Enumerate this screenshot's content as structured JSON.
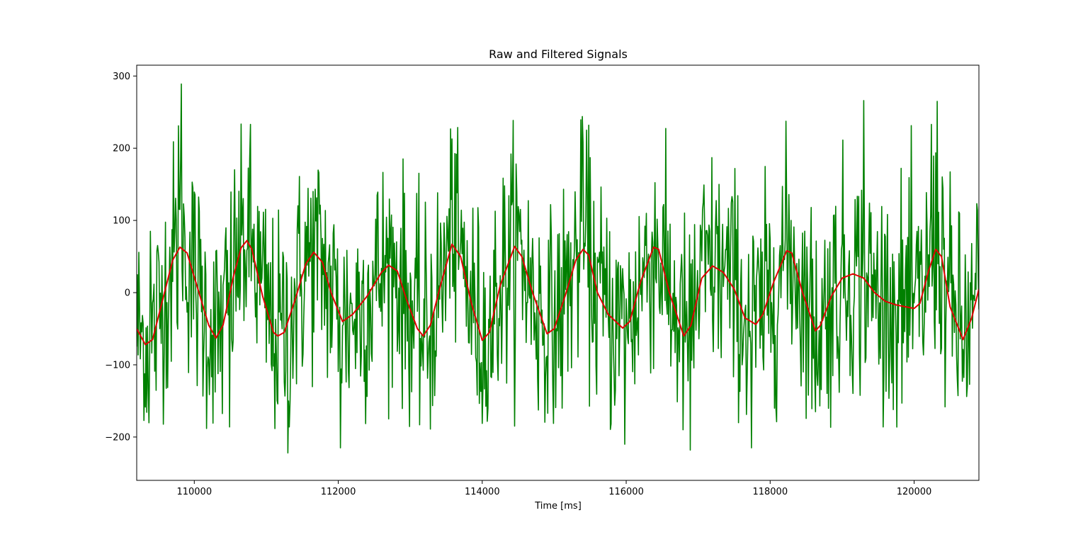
{
  "chart_data": {
    "type": "line",
    "title": "Raw and Filtered Signals",
    "xlabel": "Time [ms]",
    "ylabel": "",
    "xlim": [
      109200,
      120900
    ],
    "ylim": [
      -260,
      315
    ],
    "x_ticks": [
      110000,
      112000,
      114000,
      116000,
      118000,
      120000
    ],
    "x_tick_labels": [
      "110000",
      "112000",
      "114000",
      "116000",
      "118000",
      "120000"
    ],
    "y_ticks": [
      -200,
      -100,
      0,
      100,
      200,
      300
    ],
    "y_tick_labels": [
      "−200",
      "−100",
      "0",
      "100",
      "200",
      "300"
    ],
    "grid": false,
    "legend": "none",
    "series": [
      {
        "color": "#008000",
        "x_start": 109200,
        "x_step": 10,
        "amplitude": 80,
        "peaks": [
          {
            "x": 109820,
            "y": 289
          },
          {
            "x": 109780,
            "y": 231
          },
          {
            "x": 109390,
            "y": 85
          },
          {
            "x": 111300,
            "y": -222
          },
          {
            "x": 110490,
            "y": -186
          },
          {
            "x": 112030,
            "y": -215
          },
          {
            "x": 113580,
            "y": 213
          },
          {
            "x": 115390,
            "y": 244
          },
          {
            "x": 115450,
            "y": 225
          },
          {
            "x": 116890,
            "y": -218
          },
          {
            "x": 115980,
            "y": -210
          },
          {
            "x": 117740,
            "y": -215
          },
          {
            "x": 119300,
            "y": 266
          },
          {
            "x": 120320,
            "y": 265
          },
          {
            "x": 120240,
            "y": 233
          }
        ]
      },
      {
        "color": "#e00000",
        "points": [
          [
            109200,
            -50
          ],
          [
            109320,
            -72
          ],
          [
            109420,
            -65
          ],
          [
            109560,
            -10
          ],
          [
            109700,
            45
          ],
          [
            109800,
            63
          ],
          [
            109900,
            55
          ],
          [
            110050,
            5
          ],
          [
            110200,
            -45
          ],
          [
            110300,
            -63
          ],
          [
            110400,
            -45
          ],
          [
            110550,
            25
          ],
          [
            110650,
            62
          ],
          [
            110730,
            72
          ],
          [
            110800,
            60
          ],
          [
            110950,
            -5
          ],
          [
            111100,
            -55
          ],
          [
            111160,
            -60
          ],
          [
            111250,
            -55
          ],
          [
            111400,
            -10
          ],
          [
            111550,
            40
          ],
          [
            111660,
            56
          ],
          [
            111780,
            42
          ],
          [
            111900,
            0
          ],
          [
            112060,
            -40
          ],
          [
            112200,
            -30
          ],
          [
            112400,
            -5
          ],
          [
            112600,
            28
          ],
          [
            112700,
            38
          ],
          [
            112820,
            30
          ],
          [
            112950,
            -10
          ],
          [
            113100,
            -50
          ],
          [
            113180,
            -60
          ],
          [
            113280,
            -45
          ],
          [
            113420,
            10
          ],
          [
            113580,
            67
          ],
          [
            113700,
            50
          ],
          [
            113850,
            -15
          ],
          [
            114000,
            -66
          ],
          [
            114100,
            -55
          ],
          [
            114250,
            10
          ],
          [
            114450,
            64
          ],
          [
            114550,
            50
          ],
          [
            114700,
            0
          ],
          [
            114900,
            -57
          ],
          [
            115000,
            -50
          ],
          [
            115150,
            -5
          ],
          [
            115300,
            45
          ],
          [
            115400,
            60
          ],
          [
            115480,
            52
          ],
          [
            115600,
            0
          ],
          [
            115750,
            -30
          ],
          [
            115950,
            -49
          ],
          [
            116050,
            -40
          ],
          [
            116200,
            15
          ],
          [
            116380,
            63
          ],
          [
            116450,
            60
          ],
          [
            116600,
            0
          ],
          [
            116800,
            -60
          ],
          [
            116900,
            -45
          ],
          [
            117050,
            20
          ],
          [
            117200,
            37
          ],
          [
            117350,
            28
          ],
          [
            117500,
            5
          ],
          [
            117650,
            -35
          ],
          [
            117800,
            -44
          ],
          [
            117900,
            -30
          ],
          [
            118050,
            15
          ],
          [
            118230,
            58
          ],
          [
            118300,
            55
          ],
          [
            118450,
            0
          ],
          [
            118630,
            -53
          ],
          [
            118700,
            -45
          ],
          [
            118850,
            -5
          ],
          [
            119000,
            20
          ],
          [
            119150,
            26
          ],
          [
            119300,
            20
          ],
          [
            119450,
            0
          ],
          [
            119600,
            -12
          ],
          [
            119750,
            -17
          ],
          [
            119900,
            -20
          ],
          [
            120000,
            -22
          ],
          [
            120080,
            -15
          ],
          [
            120200,
            30
          ],
          [
            120300,
            60
          ],
          [
            120380,
            50
          ],
          [
            120500,
            -20
          ],
          [
            120680,
            -65
          ],
          [
            120800,
            -35
          ],
          [
            120900,
            5
          ]
        ]
      }
    ]
  }
}
